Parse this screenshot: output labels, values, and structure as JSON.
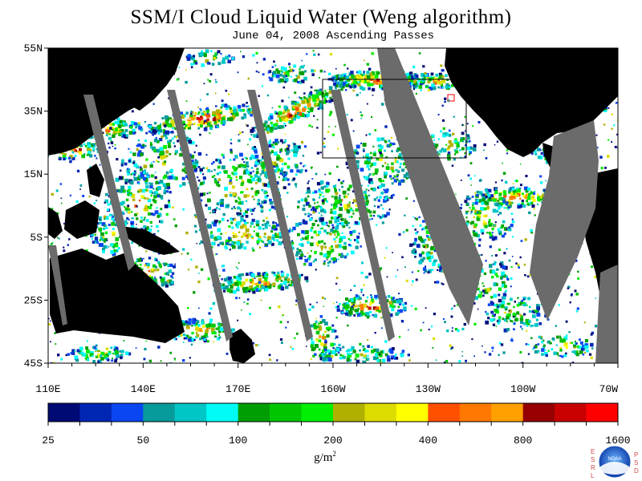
{
  "title": "SSM/I Cloud Liquid Water (Weng algorithm)",
  "subtitle": "June 04, 2008  Ascending Passes",
  "map": {
    "projection": "cylindrical",
    "lon_range": [
      "110E",
      "70W"
    ],
    "lat_range": [
      "45S",
      "55N"
    ],
    "lat_labels": [
      "55N",
      "35N",
      "15N",
      "5S",
      "25S",
      "45S"
    ],
    "lon_labels": [
      "110E",
      "140E",
      "170E",
      "160W",
      "130W",
      "100W",
      "70W"
    ],
    "land_color": "#000000",
    "no_data_color": "#6b6b6b",
    "clear_color": "#ffffff"
  },
  "colorbar": {
    "colors": [
      "#000a74",
      "#0026b4",
      "#0a46f2",
      "#079b9b",
      "#00c6c6",
      "#00fbf7",
      "#009e02",
      "#00c600",
      "#00ef00",
      "#b0b000",
      "#dcdc00",
      "#ffff00",
      "#ff5000",
      "#ff7800",
      "#ffa000",
      "#960000",
      "#c80000",
      "#ff0000"
    ],
    "labels": [
      "25",
      "50",
      "100",
      "200",
      "400",
      "800",
      "1600"
    ],
    "units": "g/m",
    "units_sup": "2"
  },
  "logo": {
    "text": "NOAA",
    "left_letters": "ESRL",
    "right_letters": "PSD"
  }
}
